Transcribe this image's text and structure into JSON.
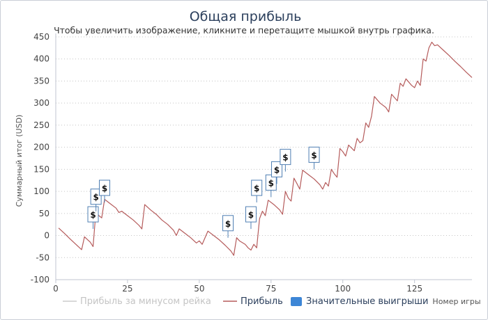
{
  "chart_data": {
    "type": "line",
    "title": "Общая прибыль",
    "subtitle": "Чтобы увеличить изображение, кликните и перетащите мышкой внутрь графика.",
    "xlabel": "Номер игры",
    "ylabel": "Суммарный итог (USD)",
    "xlim": [
      0,
      145
    ],
    "ylim": [
      -100,
      450
    ],
    "x_ticks": [
      0,
      25,
      50,
      75,
      100,
      125
    ],
    "y_ticks": [
      -100,
      -50,
      0,
      50,
      100,
      150,
      200,
      250,
      300,
      350,
      400,
      450
    ],
    "grid": "horizontal-dotted",
    "legend_position": "bottom",
    "legend": [
      {
        "name": "Прибыль за минусом рейка",
        "color": "#cccccc",
        "style": "line",
        "state": "hidden"
      },
      {
        "name": "Прибыль",
        "color": "#b55b5b",
        "style": "line",
        "state": "visible"
      },
      {
        "name": "Значительные выигрыши",
        "color": "#3d86d6",
        "style": "flag",
        "state": "visible"
      }
    ],
    "series": [
      {
        "name": "Прибыль",
        "color": "#b55b5b",
        "points": [
          [
            1,
            17
          ],
          [
            3,
            5
          ],
          [
            5,
            -8
          ],
          [
            7,
            -20
          ],
          [
            9,
            -32
          ],
          [
            10,
            -3
          ],
          [
            12,
            -15
          ],
          [
            13,
            -25
          ],
          [
            14,
            55
          ],
          [
            15,
            45
          ],
          [
            16,
            40
          ],
          [
            17,
            82
          ],
          [
            19,
            72
          ],
          [
            21,
            62
          ],
          [
            22,
            52
          ],
          [
            23,
            55
          ],
          [
            25,
            45
          ],
          [
            27,
            35
          ],
          [
            29,
            23
          ],
          [
            30,
            15
          ],
          [
            31,
            70
          ],
          [
            33,
            58
          ],
          [
            35,
            48
          ],
          [
            37,
            35
          ],
          [
            39,
            25
          ],
          [
            41,
            12
          ],
          [
            42,
            0
          ],
          [
            43,
            15
          ],
          [
            45,
            5
          ],
          [
            47,
            -5
          ],
          [
            49,
            -17
          ],
          [
            50,
            -12
          ],
          [
            51,
            -20
          ],
          [
            53,
            10
          ],
          [
            55,
            0
          ],
          [
            57,
            -10
          ],
          [
            59,
            -22
          ],
          [
            61,
            -35
          ],
          [
            62,
            -45
          ],
          [
            63,
            -5
          ],
          [
            64,
            -12
          ],
          [
            66,
            -20
          ],
          [
            67,
            -28
          ],
          [
            68,
            -33
          ],
          [
            69,
            -20
          ],
          [
            70,
            -28
          ],
          [
            71,
            38
          ],
          [
            72,
            55
          ],
          [
            73,
            45
          ],
          [
            74,
            80
          ],
          [
            76,
            70
          ],
          [
            78,
            58
          ],
          [
            79,
            48
          ],
          [
            80,
            100
          ],
          [
            81,
            85
          ],
          [
            82,
            78
          ],
          [
            83,
            130
          ],
          [
            84,
            118
          ],
          [
            85,
            105
          ],
          [
            86,
            148
          ],
          [
            88,
            138
          ],
          [
            90,
            128
          ],
          [
            92,
            115
          ],
          [
            93,
            105
          ],
          [
            94,
            120
          ],
          [
            95,
            112
          ],
          [
            96,
            150
          ],
          [
            97,
            140
          ],
          [
            98,
            132
          ],
          [
            99,
            197
          ],
          [
            100,
            190
          ],
          [
            101,
            180
          ],
          [
            102,
            205
          ],
          [
            104,
            192
          ],
          [
            105,
            220
          ],
          [
            106,
            210
          ],
          [
            107,
            215
          ],
          [
            108,
            255
          ],
          [
            109,
            245
          ],
          [
            110,
            270
          ],
          [
            111,
            315
          ],
          [
            113,
            300
          ],
          [
            115,
            290
          ],
          [
            116,
            280
          ],
          [
            117,
            320
          ],
          [
            119,
            305
          ],
          [
            120,
            345
          ],
          [
            121,
            338
          ],
          [
            122,
            355
          ],
          [
            124,
            340
          ],
          [
            125,
            335
          ],
          [
            126,
            350
          ],
          [
            127,
            340
          ],
          [
            128,
            400
          ],
          [
            129,
            395
          ],
          [
            130,
            425
          ],
          [
            131,
            438
          ],
          [
            132,
            430
          ],
          [
            133,
            432
          ],
          [
            135,
            420
          ],
          [
            137,
            408
          ],
          [
            139,
            395
          ],
          [
            141,
            383
          ],
          [
            143,
            370
          ],
          [
            145,
            358
          ]
        ]
      }
    ],
    "flags": [
      {
        "label": "$",
        "x": 13,
        "y": 48
      },
      {
        "label": "$",
        "x": 14,
        "y": 88
      },
      {
        "label": "$",
        "x": 17,
        "y": 108
      },
      {
        "label": "$",
        "x": 60,
        "y": 28
      },
      {
        "label": "$",
        "x": 68,
        "y": 48
      },
      {
        "label": "$",
        "x": 70,
        "y": 108
      },
      {
        "label": "$",
        "x": 75,
        "y": 120
      },
      {
        "label": "$",
        "x": 77,
        "y": 150
      },
      {
        "label": "$",
        "x": 80,
        "y": 178
      },
      {
        "label": "$",
        "x": 90,
        "y": 183
      }
    ]
  }
}
